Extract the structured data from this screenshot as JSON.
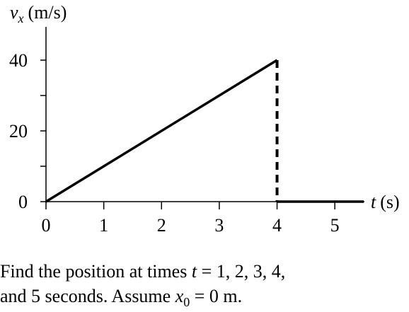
{
  "chart_data": {
    "type": "line",
    "y_label": {
      "symbol": "v",
      "subscript": "x",
      "unit": "(m/s)"
    },
    "x_label": {
      "symbol": "t",
      "unit": "(s)"
    },
    "xlim": [
      0,
      5.5
    ],
    "ylim": [
      0,
      49.4
    ],
    "xticks": [
      0,
      1,
      2,
      3,
      4,
      5
    ],
    "yticks": [
      0,
      20,
      40
    ],
    "minor_yticks": [
      10,
      30
    ],
    "series": [
      {
        "color": "#000000",
        "line_style": "solid",
        "x": [
          0,
          4
        ],
        "values": [
          0,
          40
        ]
      },
      {
        "color": "#000000",
        "line_style": "dashed",
        "x": [
          4,
          4
        ],
        "values": [
          40,
          0
        ]
      },
      {
        "color": "#000000",
        "line_style": "solid",
        "x": [
          4,
          5.5
        ],
        "values": [
          0,
          0
        ]
      }
    ]
  },
  "caption": {
    "lines": [
      [
        "Find the position at times ",
        "t",
        " = 1, 2, 3, 4,"
      ],
      [
        "and 5 seconds. Assume ",
        "x",
        "0",
        " = 0 m."
      ]
    ]
  }
}
